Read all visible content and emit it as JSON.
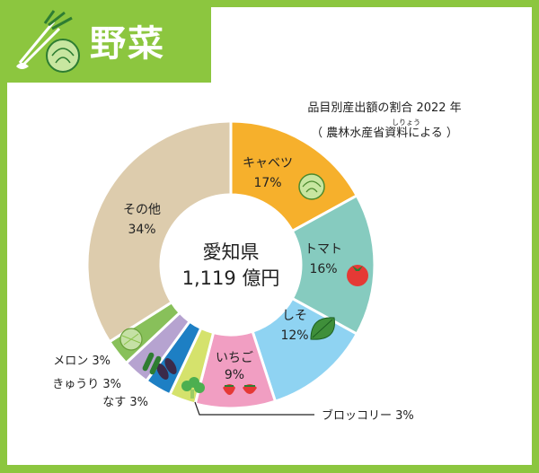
{
  "title": "野菜",
  "caption": {
    "line1": "品目別産出額の割合 2022 年",
    "line2": "（ 農林水産省資料による ）",
    "ruby": "しりょう"
  },
  "center": {
    "line1": "愛知県",
    "line2": "1,119 億円"
  },
  "colors": {
    "frame": "#8cc63f",
    "キャベツ": "#f6b02c",
    "トマト": "#86cbbf",
    "しそ": "#8fd3f2",
    "いちご": "#f19ec2",
    "ブロッコリー": "#d5e26c",
    "なす": "#1d7fc4",
    "きゅうり": "#b6a3d0",
    "メロン": "#88c05a",
    "その他": "#ddccad"
  },
  "chart_data": {
    "type": "pie",
    "unit": "%",
    "slices": [
      {
        "name": "キャベツ",
        "value": 17,
        "label": "17%"
      },
      {
        "name": "トマト",
        "value": 16,
        "label": "16%"
      },
      {
        "name": "しそ",
        "value": 12,
        "label": "12%"
      },
      {
        "name": "いちご",
        "value": 9,
        "label": "9%"
      },
      {
        "name": "ブロッコリー",
        "value": 3,
        "label": "ブロッコリー 3%"
      },
      {
        "name": "なす",
        "value": 3,
        "label": "なす 3%"
      },
      {
        "name": "きゅうり",
        "value": 3,
        "label": "きゅうり 3%"
      },
      {
        "name": "メロン",
        "value": 3,
        "label": "メロン 3%"
      },
      {
        "name": "その他",
        "value": 34,
        "label": "34%"
      }
    ]
  }
}
